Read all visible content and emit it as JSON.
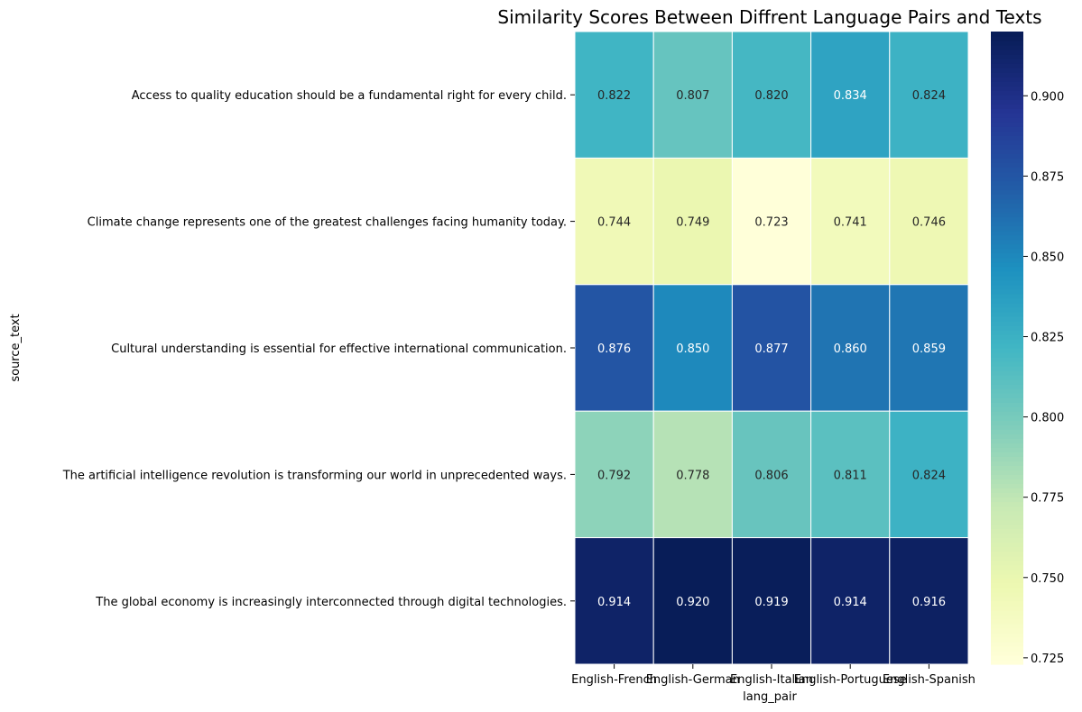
{
  "chart_data": {
    "type": "heatmap",
    "title": "Similarity Scores Between Diffrent Language Pairs and Texts",
    "xlabel": "lang_pair",
    "ylabel": "source_text",
    "x_categories": [
      "English-French",
      "English-German",
      "English-Italian",
      "English-Portuguese",
      "English-Spanish"
    ],
    "y_categories": [
      "Access to quality education should be a fundamental right for every child.",
      "Climate change represents one of the greatest challenges facing humanity today.",
      "Cultural understanding is essential for effective international communication.",
      "The artificial intelligence revolution is transforming our world in unprecedented ways.",
      "The global economy is increasingly interconnected through digital technologies."
    ],
    "values": [
      [
        0.822,
        0.807,
        0.82,
        0.834,
        0.824
      ],
      [
        0.744,
        0.749,
        0.723,
        0.741,
        0.746
      ],
      [
        0.876,
        0.85,
        0.877,
        0.86,
        0.859
      ],
      [
        0.792,
        0.778,
        0.806,
        0.811,
        0.824
      ],
      [
        0.914,
        0.92,
        0.919,
        0.914,
        0.916
      ]
    ],
    "colorbar": {
      "colormap": "YlGnBu",
      "vmin": 0.723,
      "vmax": 0.92,
      "ticks": [
        0.725,
        0.75,
        0.775,
        0.8,
        0.825,
        0.85,
        0.875,
        0.9
      ]
    }
  }
}
